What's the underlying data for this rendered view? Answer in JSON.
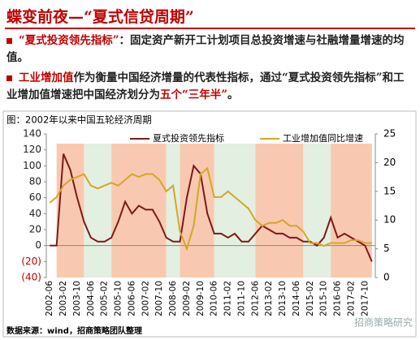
{
  "header": {
    "title": "蝶变前夜—“夏式信贷周期”"
  },
  "bullets": [
    [
      {
        "text": "“夏式投资领先指标”",
        "red": true
      },
      {
        "text": "：固定资产新开工计划项目总投资增速与社融增量增速的均值。",
        "red": false
      }
    ],
    [
      {
        "text": "工业增加值",
        "red": true
      },
      {
        "text": "作为衡量中国经济增量的代表性指标，通过“夏式投资领先指标”和工业增加值增速把中国经济划分为",
        "red": false
      },
      {
        "text": "五个",
        "red": true
      },
      {
        "text": "“三年半”",
        "red": true
      },
      {
        "text": "。",
        "red": false
      }
    ]
  ],
  "chart_data": {
    "type": "line",
    "title": "图：2002年以来中国五轮经济周期",
    "source": "数据来源：wind，招商策略团队整理",
    "watermark": "招商策略研究",
    "categories": [
      "2002-06",
      null,
      "2003-02",
      null,
      "2003-10",
      null,
      "2004-06",
      null,
      "2005-02",
      null,
      "2005-10",
      null,
      "2006-06",
      null,
      "2007-02",
      null,
      "2007-10",
      null,
      "2008-06",
      null,
      "2009-02",
      null,
      "2009-10",
      null,
      "2010-06",
      null,
      "2011-02",
      null,
      "2011-10",
      null,
      "2012-06",
      null,
      "2013-02",
      null,
      "2013-10",
      null,
      "2014-06",
      null,
      "2015-02",
      null,
      "2015-10",
      null,
      "2016-06",
      null,
      "2017-02",
      null,
      "2017-10",
      null
    ],
    "series": [
      {
        "name": "夏式投资领先指标",
        "color": "#7b1a1a",
        "values": [
          0,
          0,
          115,
          95,
          60,
          30,
          10,
          5,
          5,
          10,
          30,
          55,
          40,
          50,
          45,
          45,
          30,
          10,
          5,
          5,
          60,
          100,
          90,
          40,
          15,
          15,
          10,
          15,
          5,
          5,
          15,
          25,
          20,
          15,
          15,
          10,
          10,
          5,
          5,
          0,
          10,
          35,
          10,
          15,
          10,
          5,
          0,
          -20
        ]
      },
      {
        "name": "工业增加值同比增速",
        "color": "#d4a62a",
        "axis": "y2",
        "values": [
          13,
          14,
          16,
          17,
          17.5,
          18,
          16,
          15.5,
          16,
          16.5,
          16,
          17,
          18,
          17.5,
          18,
          18,
          17,
          15,
          16,
          8,
          5,
          9,
          18,
          19,
          14,
          14,
          15,
          14,
          13,
          12,
          10,
          9,
          9.5,
          9.5,
          10,
          9,
          9,
          8,
          6,
          6,
          5.5,
          6,
          6,
          6,
          6.5,
          6.5,
          6,
          6
        ]
      }
    ],
    "ylim": [
      -40,
      140
    ],
    "yticks": [
      {
        "value": -40,
        "label": "(40)"
      },
      {
        "value": -20,
        "label": "(20)"
      },
      0,
      20,
      40,
      60,
      80,
      100,
      120,
      140
    ],
    "y2lim": [
      0,
      25
    ],
    "y2ticks": [
      0,
      5,
      10,
      15,
      20,
      25
    ],
    "legend": "top"
  }
}
